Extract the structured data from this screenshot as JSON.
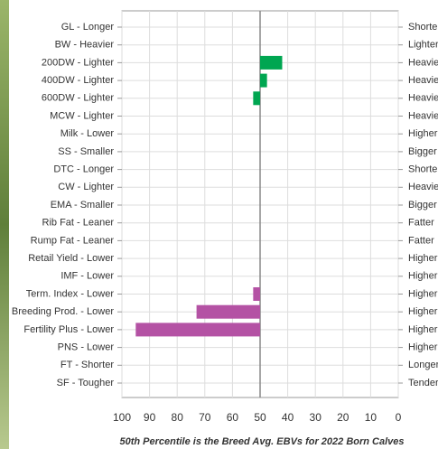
{
  "chart_data": {
    "type": "diverging-bar",
    "title": "50th Percentile is the Breed Avg. EBVs for 2022 Born Calves",
    "categories": [
      "GL - Longer",
      "BW - Heavier",
      "200DW - Lighter",
      "400DW - Lighter",
      "600DW - Lighter",
      "MCW - Lighter",
      "Milk - Lower",
      "SS - Smaller",
      "DTC - Longer",
      "CW - Lighter",
      "EMA - Smaller",
      "Rib Fat - Leaner",
      "Rump Fat - Leaner",
      "Retail Yield - Lower",
      "IMF - Lower",
      "Term. Index - Lower",
      "Breeding Prod. - Lower",
      "Fertility Plus - Lower",
      "PNS - Lower",
      "FT - Shorter",
      "SF - Tougher"
    ],
    "right_categories": [
      "Shorter",
      "Lighter",
      "Heavier",
      "Heavier",
      "Heavier",
      "Heavier",
      "Higher",
      "Bigger",
      "Shorter",
      "Heavier",
      "Bigger",
      "Fatter",
      "Fatter",
      "Higher",
      "Higher",
      "Higher",
      "Higher",
      "Higher",
      "Higher",
      "Longer",
      "Tender"
    ],
    "values": [
      null,
      null,
      42,
      47.5,
      52.5,
      null,
      null,
      null,
      null,
      null,
      null,
      null,
      null,
      null,
      null,
      52.5,
      73,
      95,
      null,
      null,
      null
    ],
    "colors": [
      null,
      null,
      "#00a651",
      "#00a651",
      "#00a651",
      null,
      null,
      null,
      null,
      null,
      null,
      null,
      null,
      null,
      null,
      "#b452a4",
      "#b452a4",
      "#b452a4",
      null,
      null,
      null
    ],
    "base": 50,
    "xlim": [
      100,
      0
    ],
    "xticks": [
      100,
      90,
      80,
      70,
      60,
      50,
      40,
      30,
      20,
      10,
      0
    ],
    "grid": true
  }
}
